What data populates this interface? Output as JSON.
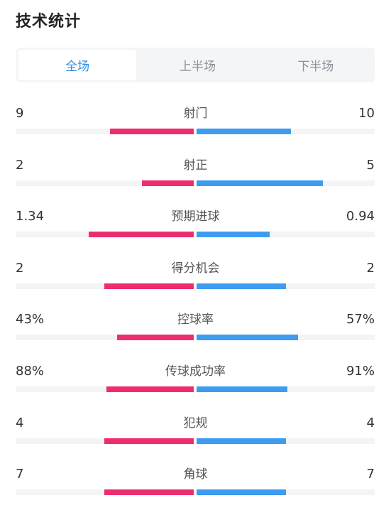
{
  "title": "技术统计",
  "tabs": [
    {
      "label": "全场",
      "active": true
    },
    {
      "label": "上半场",
      "active": false
    },
    {
      "label": "下半场",
      "active": false
    }
  ],
  "colors": {
    "home": "#ee2e6c",
    "away": "#3d9bf0",
    "accent": "#2f8ee8",
    "track": "#f3f4f6"
  },
  "stats": [
    {
      "label": "射门",
      "home": "9",
      "away": "10",
      "home_fraction": 0.47,
      "away_fraction": 0.53
    },
    {
      "label": "射正",
      "home": "2",
      "away": "5",
      "home_fraction": 0.29,
      "away_fraction": 0.71
    },
    {
      "label": "预期进球",
      "home": "1.34",
      "away": "0.94",
      "home_fraction": 0.59,
      "away_fraction": 0.41
    },
    {
      "label": "得分机会",
      "home": "2",
      "away": "2",
      "home_fraction": 0.5,
      "away_fraction": 0.5
    },
    {
      "label": "控球率",
      "home": "43%",
      "away": "57%",
      "home_fraction": 0.43,
      "away_fraction": 0.57
    },
    {
      "label": "传球成功率",
      "home": "88%",
      "away": "91%",
      "home_fraction": 0.49,
      "away_fraction": 0.51
    },
    {
      "label": "犯规",
      "home": "4",
      "away": "4",
      "home_fraction": 0.5,
      "away_fraction": 0.5
    },
    {
      "label": "角球",
      "home": "7",
      "away": "7",
      "home_fraction": 0.5,
      "away_fraction": 0.5
    }
  ]
}
